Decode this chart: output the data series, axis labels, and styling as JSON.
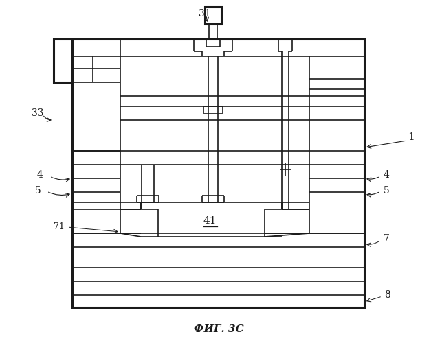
{
  "title": "ФИГ. 3С",
  "label_1": "1",
  "label_31": "31",
  "label_33": "33",
  "label_4L": "4",
  "label_4R": "4",
  "label_5L": "5",
  "label_5R": "5",
  "label_41": "41",
  "label_71": "71",
  "label_7": "7",
  "label_8": "8",
  "line_color": "#1a1a1a",
  "bg_color": "#ffffff",
  "lw": 1.2,
  "tlw": 2.2
}
